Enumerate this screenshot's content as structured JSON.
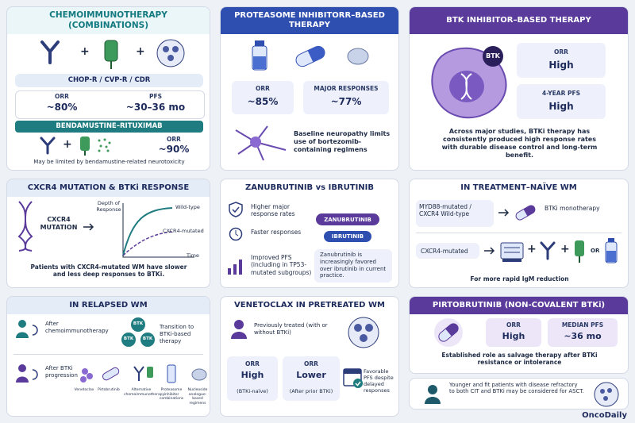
{
  "panels": [
    {
      "title": "CHEMOIMMUNOTHERAPY (COMBINATIONS)",
      "operators": [
        "+",
        "+",
        "+"
      ],
      "regimens": "CHOP-R / CVP-R / CDR",
      "stats": [
        {
          "label": "ORR",
          "value": "~80%"
        },
        {
          "label": "PFS",
          "value": "~30–36 mo"
        }
      ],
      "sub_title": "BENDAMUSTINE–RITUXIMAB",
      "sub_stat": {
        "label": "ORR",
        "value": "~90%"
      },
      "note": "May be limited by bendamustine-related neurotoxicity"
    },
    {
      "title": "PROTEASOME INHIBITORR–BASED THERAPY",
      "stats": [
        {
          "label": "ORR",
          "value": "~85%"
        },
        {
          "label": "MAJOR RESPONSES",
          "value": "~77%"
        }
      ],
      "note": "Baseline neuropathy limits use of bortezomib-containing regimens"
    },
    {
      "title": "BTK INHIBITOR–BASED THERAPY",
      "badge": "BTK",
      "stats": [
        {
          "label": "ORR",
          "value": "High"
        },
        {
          "label": "4-YEAR PFS",
          "value": "High"
        }
      ],
      "note": "Across major studies, BTKi therapy has consistently produced high response rates with durable disease control and long-term benefit."
    },
    {
      "title": "CXCR4 MUTATION & BTKi RESPONSE",
      "gene": "CXCR4 MUTATION",
      "y_label": "Depth of Response",
      "x_label": "Time",
      "curves": [
        "Wild-type",
        "CXCR4-mutated"
      ],
      "note": "Patients with CXCR4-mutated WM have slower and less deep responses to BTKi."
    },
    {
      "title": "ZANUBRUTINIB vs IBRUTINIB",
      "points": [
        "Higher major response rates",
        "Faster responses",
        "Improved PFS (including in TP53-mutated subgroups)"
      ],
      "drugs": [
        "ZANUBRUTINIB",
        "IBRUTINIB"
      ],
      "note": "Zanubrutinib is increasingly favored over ibrutinib in current practice."
    },
    {
      "title": "IN TREATMENT–NAÏVE WM",
      "rows": [
        {
          "group": "MYD88-mutated / CXCR4 Wild-type",
          "therapy": "BTKi monotherapy"
        },
        {
          "group": "CXCR4-mutated"
        }
      ],
      "operators": [
        "+",
        "+",
        "OR"
      ],
      "note": "For more rapid IgM reduction"
    },
    {
      "title": "IN RELAPSED WM",
      "after_chemo": "After chemoimmunotherapy",
      "btk": [
        "BTK",
        "BTK",
        "BTK"
      ],
      "transition": "Transition to BTKi-based therapy",
      "after_btki": "After BTKi progression",
      "options": [
        "Venetoclax",
        "Pirtobrutinib",
        "Alternative chemoimmunotherapy",
        "Proteasome inhibitor combinations",
        "Nucleoside analogue-based regimens"
      ]
    },
    {
      "title": "VENETOCLAX IN PRETREATED WM",
      "population": "Previously treated (with or without BTKi)",
      "stats": [
        {
          "label": "ORR",
          "value": "High",
          "context": "(BTKi-naïve)"
        },
        {
          "label": "ORR",
          "value": "Lower",
          "context": "(After prior BTKi)"
        }
      ],
      "note": "Favorable PFS despite delayed responses"
    },
    {
      "title": "PIRTOBRUTINIB (NON-COVALENT BTKi)",
      "stats": [
        {
          "label": "ORR",
          "value": "High"
        },
        {
          "label": "MEDIAN PFS",
          "value": "~36 mo"
        }
      ],
      "note": "Established role as salvage therapy after BTKi resistance or intolerance"
    }
  ],
  "asct_note": "Younger and fit patients with disease refractory to both CIT and BTKi may be considered for ASCT.",
  "brand": "OncoDaily"
}
